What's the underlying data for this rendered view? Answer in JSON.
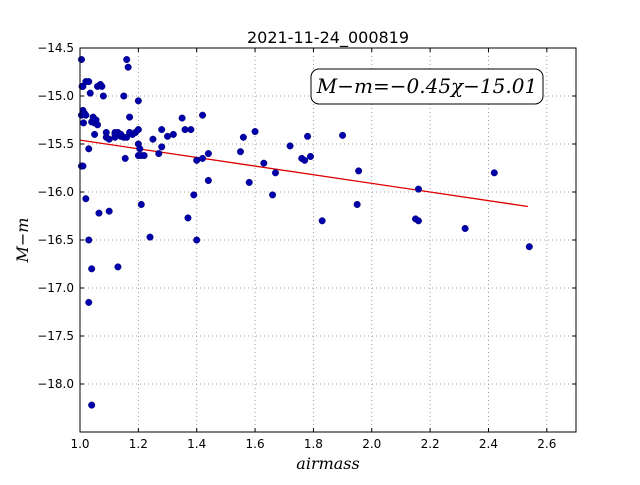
{
  "chart_data": {
    "type": "scatter",
    "title": "2021-11-24_000819",
    "xlabel": "airmass",
    "ylabel": "M−m",
    "xlim": [
      1.0,
      2.7
    ],
    "ylim": [
      -18.5,
      -14.5
    ],
    "y_inverted": true,
    "grid": true,
    "grid_style": "dotted",
    "x_ticks": [
      1.0,
      1.2,
      1.4,
      1.6,
      1.8,
      2.0,
      2.2,
      2.4,
      2.6
    ],
    "x_tick_labels": [
      "1.0",
      "1.2",
      "1.4",
      "1.6",
      "1.8",
      "2.0",
      "2.2",
      "2.4",
      "2.6"
    ],
    "y_ticks": [
      -14.5,
      -15.0,
      -15.5,
      -16.0,
      -16.5,
      -17.0,
      -17.5,
      -18.0
    ],
    "y_tick_labels": [
      "−14.5",
      "−15.0",
      "−15.5",
      "−16.0",
      "−16.5",
      "−17.0",
      "−17.5",
      "−18.0"
    ],
    "annotation": "M−m=−0.45χ−15.01",
    "fit_line": {
      "slope": -0.45,
      "intercept": -15.01,
      "x_range": [
        1.0,
        2.535
      ]
    },
    "colors": {
      "points": "#0000aa",
      "fit_line": "#dd0000",
      "grid": "#888888"
    },
    "x": [
      1.005,
      1.007,
      1.01,
      1.012,
      1.02,
      1.03,
      1.035,
      1.04,
      1.045,
      1.05,
      1.06,
      1.07,
      1.075,
      1.08,
      1.09,
      1.005,
      1.01,
      1.015,
      1.02,
      1.05,
      1.055,
      1.06,
      1.09,
      1.1,
      1.12,
      1.14,
      1.15,
      1.16,
      1.17,
      1.18,
      1.19,
      1.2,
      1.2,
      1.21,
      1.25,
      1.3,
      1.32,
      1.35,
      1.38,
      1.42,
      1.12,
      1.15,
      1.17,
      1.13,
      1.2,
      1.28,
      1.36,
      1.42,
      1.44,
      1.55,
      1.56,
      1.6,
      1.72,
      1.78,
      1.9,
      2.15,
      2.16,
      2.42,
      1.16,
      1.165,
      1.155,
      1.2,
      1.205,
      1.005,
      1.01,
      1.03,
      1.12,
      1.14,
      1.22,
      1.27,
      1.28,
      1.4,
      1.44,
      1.58,
      1.63,
      1.67,
      1.76,
      1.79,
      1.955,
      2.16,
      1.02,
      1.065,
      1.1,
      1.21,
      1.24,
      1.37,
      1.39,
      1.4,
      1.66,
      1.77,
      1.83,
      1.95,
      2.32,
      2.54,
      1.03,
      1.04,
      1.13,
      1.03,
      1.04
    ],
    "y": [
      -14.62,
      -14.9,
      -14.9,
      -15.28,
      -14.85,
      -14.85,
      -14.97,
      -15.27,
      -15.22,
      -15.28,
      -14.9,
      -14.88,
      -14.9,
      -15.0,
      -15.43,
      -15.2,
      -15.15,
      -15.18,
      -15.2,
      -15.4,
      -15.25,
      -15.3,
      -15.38,
      -15.45,
      -15.4,
      -15.42,
      -15.43,
      -15.43,
      -15.38,
      -15.4,
      -15.38,
      -15.35,
      -15.62,
      -15.62,
      -15.45,
      -15.42,
      -15.4,
      -15.23,
      -15.35,
      -15.2,
      -15.38,
      -15.0,
      -15.22,
      -15.38,
      -15.05,
      -15.35,
      -15.35,
      -15.65,
      -15.6,
      -15.58,
      -15.43,
      -15.37,
      -15.52,
      -15.42,
      -15.41,
      -16.28,
      -16.3,
      -15.8,
      -14.62,
      -14.7,
      -15.65,
      -15.5,
      -15.55,
      -15.73,
      -15.73,
      -15.55,
      -15.43,
      -15.4,
      -15.62,
      -15.6,
      -15.53,
      -15.67,
      -15.88,
      -15.9,
      -15.7,
      -15.8,
      -15.65,
      -15.63,
      -15.78,
      -15.97,
      -16.07,
      -16.22,
      -16.2,
      -16.13,
      -16.47,
      -16.27,
      -16.03,
      -16.5,
      -16.03,
      -15.67,
      -16.3,
      -16.13,
      -16.38,
      -16.57,
      -16.5,
      -16.8,
      -16.78,
      -17.15,
      -18.22
    ]
  }
}
